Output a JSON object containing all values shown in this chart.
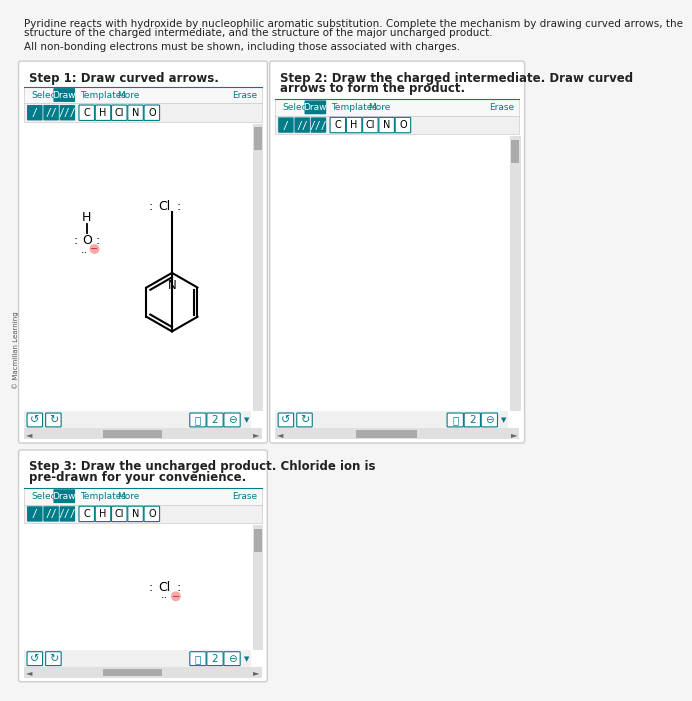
{
  "bg_color": "#f5f5f5",
  "panel_bg": "#ffffff",
  "panel_border": "#cccccc",
  "teal": "#007b8a",
  "header_text_color": "#222222",
  "select_color": "#007b8a",
  "button_bg": "#007b8a",
  "button_text": "#ffffff",
  "text_color": "#222222",
  "erase_color": "#007b8a",
  "title_line1": "Pyridine reacts with hydroxide by nucleophilic aromatic substitution. Complete the mechanism by drawing curved arrows, the",
  "title_line2": "structure of the charged intermediate, and the structure of the major uncharged product.",
  "subtitle": "All non-bonding electrons must be shown, including those associated with charges.",
  "step1_title": "Step 1: Draw curved arrows.",
  "step2_line1": "Step 2: Draw the charged intermediate. Draw curved",
  "step2_line2": "arrows to form the product.",
  "step3_line1": "Step 3: Draw the uncharged product. Chloride ion is",
  "step3_line2": "pre-drawn for your convenience.",
  "atoms": [
    "C",
    "H",
    "Cl",
    "N",
    "O"
  ],
  "bond_syms": [
    "/",
    "//",
    "///"
  ]
}
